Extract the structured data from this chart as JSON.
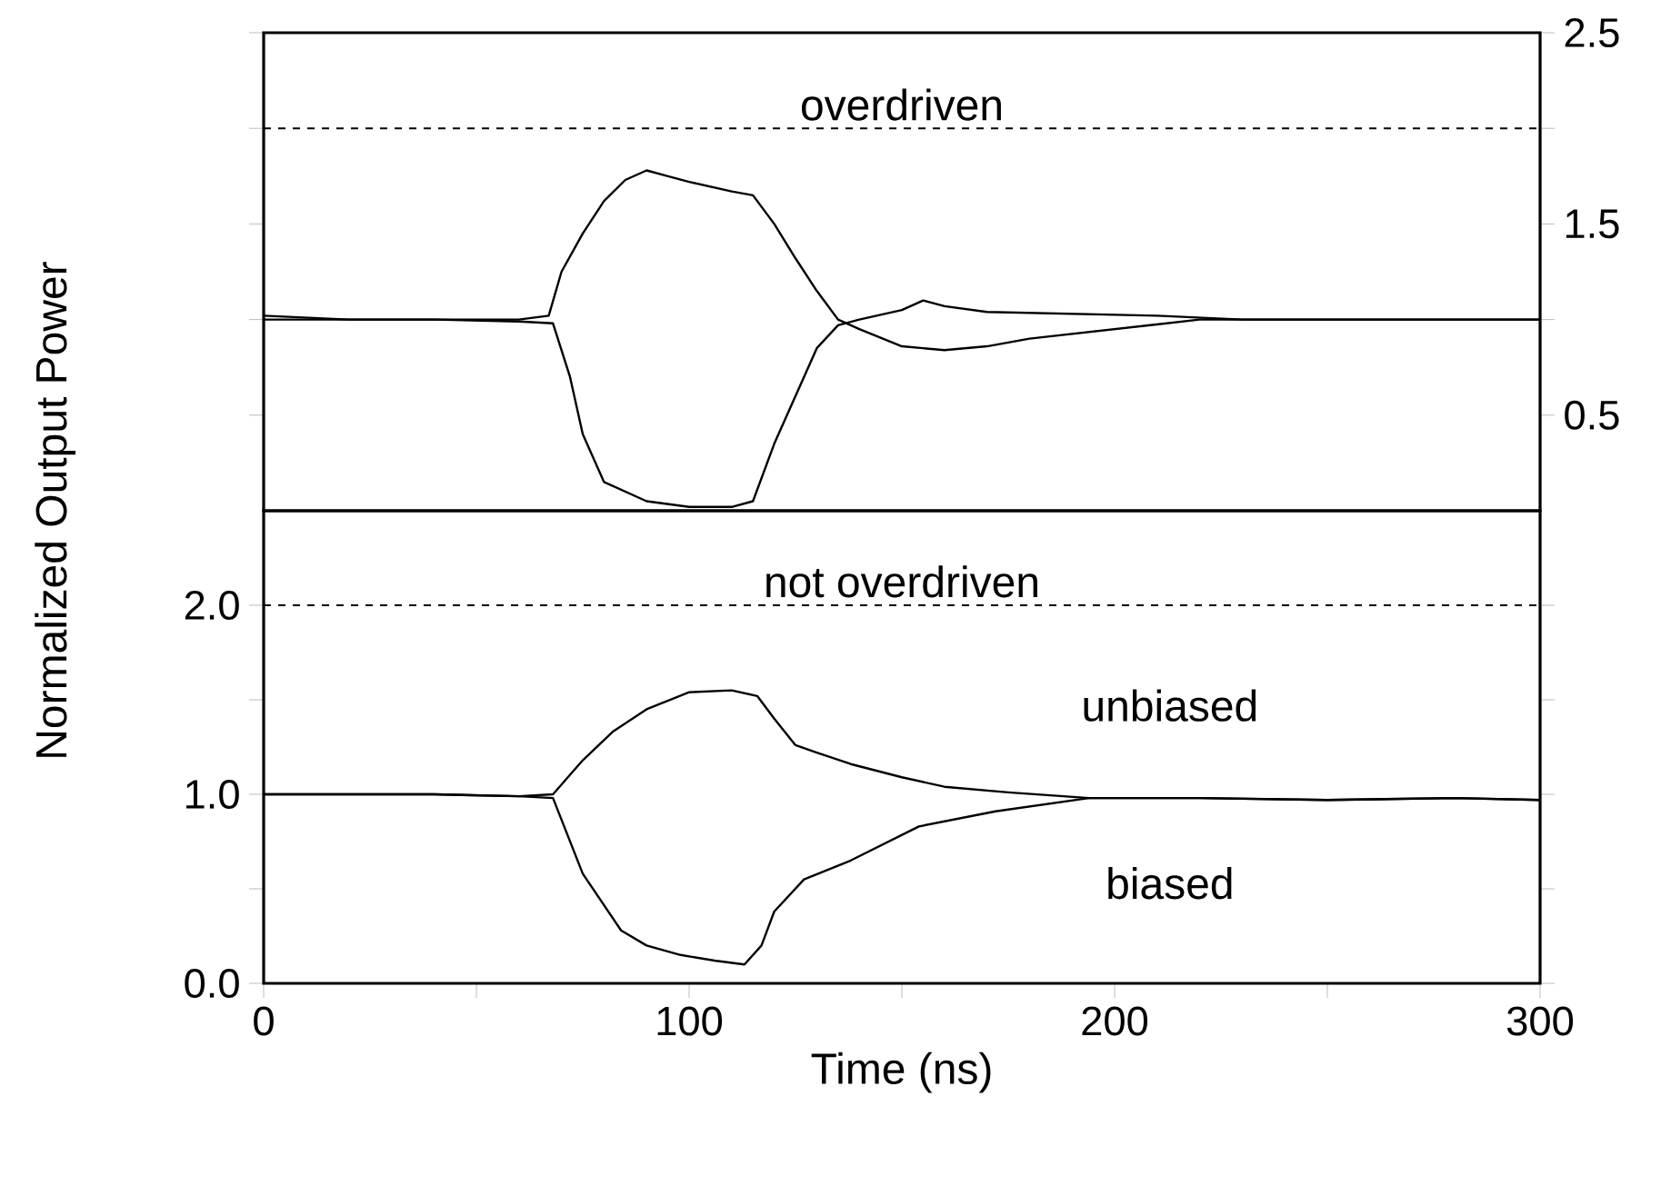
{
  "chart_data": [
    {
      "type": "line",
      "xlim": [
        0,
        300
      ],
      "ylim": [
        0,
        2.5
      ],
      "tick_labels": "y",
      "marker": "none",
      "line_style": "solid",
      "yticks": [
        {
          "value": 0.5,
          "label": "0.5"
        },
        {
          "value": 1.0,
          "label": null
        },
        {
          "value": 1.5,
          "label": "1.5"
        },
        {
          "value": 2.0,
          "label": null
        },
        {
          "value": 2.5,
          "label": "2.5"
        }
      ],
      "ref_lines": [
        {
          "axis": "y",
          "value": 2.0,
          "label": "overdriven",
          "line_style": "dashed",
          "color": "#000000"
        }
      ],
      "series": [
        {
          "color": "#000000",
          "x": [
            0,
            20,
            40,
            60,
            67,
            70,
            75,
            80,
            85,
            90,
            95,
            100,
            110,
            115,
            120,
            125,
            130,
            135,
            140,
            150,
            160,
            170,
            180,
            200,
            220,
            250,
            280,
            300
          ],
          "values": [
            1.0,
            1.0,
            1.0,
            1.0,
            1.02,
            1.25,
            1.45,
            1.62,
            1.73,
            1.78,
            1.75,
            1.72,
            1.67,
            1.65,
            1.5,
            1.32,
            1.15,
            1.0,
            0.95,
            0.86,
            0.84,
            0.86,
            0.9,
            0.95,
            1.0,
            1.0,
            1.0,
            1.0
          ]
        },
        {
          "color": "#000000",
          "x": [
            0,
            20,
            40,
            60,
            68,
            72,
            75,
            80,
            85,
            90,
            100,
            110,
            115,
            120,
            125,
            130,
            135,
            140,
            150,
            155,
            160,
            170,
            190,
            210,
            230,
            260,
            300
          ],
          "values": [
            1.02,
            1.0,
            1.0,
            0.99,
            0.98,
            0.7,
            0.4,
            0.15,
            0.1,
            0.05,
            0.02,
            0.02,
            0.05,
            0.35,
            0.6,
            0.85,
            0.97,
            1.0,
            1.05,
            1.1,
            1.07,
            1.04,
            1.03,
            1.02,
            1.0,
            1.0,
            1.0
          ]
        }
      ]
    },
    {
      "type": "line",
      "xlabel": "Time (ns)",
      "ylabel": "Normalized Output Power",
      "xlim": [
        0,
        300
      ],
      "ylim": [
        0,
        2.5
      ],
      "marker": "none",
      "line_style": "solid",
      "xticks": [
        0,
        {
          "value": 50,
          "label": null
        },
        100,
        {
          "value": 150,
          "label": null
        },
        200,
        {
          "value": 250,
          "label": null
        },
        300
      ],
      "yticks": [
        {
          "value": 0.0,
          "label": "0.0"
        },
        {
          "value": 0.5,
          "label": null
        },
        {
          "value": 1.0,
          "label": "1.0"
        },
        {
          "value": 1.5,
          "label": null
        },
        {
          "value": 2.0,
          "label": "2.0"
        }
      ],
      "ref_lines": [
        {
          "axis": "y",
          "value": 2.0,
          "label": "not overdriven",
          "line_style": "dashed",
          "color": "#000000"
        }
      ],
      "series": [
        {
          "name": "unbiased",
          "color": "#000000",
          "x": [
            0,
            20,
            40,
            60,
            68,
            75,
            82,
            90,
            100,
            110,
            116,
            120,
            125,
            130,
            138,
            150,
            160,
            175,
            194,
            220,
            250,
            280,
            300
          ],
          "values": [
            1.0,
            1.0,
            1.0,
            0.99,
            1.0,
            1.18,
            1.33,
            1.45,
            1.54,
            1.55,
            1.52,
            1.4,
            1.26,
            1.22,
            1.16,
            1.09,
            1.04,
            1.01,
            0.98,
            0.98,
            0.97,
            0.98,
            0.97
          ]
        },
        {
          "name": "biased",
          "color": "#000000",
          "x": [
            0,
            20,
            40,
            60,
            68,
            75,
            84,
            90,
            98,
            106,
            113,
            117,
            120,
            127,
            138,
            154,
            172,
            194,
            220,
            250,
            280,
            300
          ],
          "values": [
            1.0,
            1.0,
            1.0,
            0.99,
            0.98,
            0.58,
            0.28,
            0.2,
            0.15,
            0.12,
            0.1,
            0.2,
            0.38,
            0.55,
            0.65,
            0.83,
            0.91,
            0.98,
            0.98,
            0.97,
            0.98,
            0.97
          ]
        }
      ]
    }
  ]
}
